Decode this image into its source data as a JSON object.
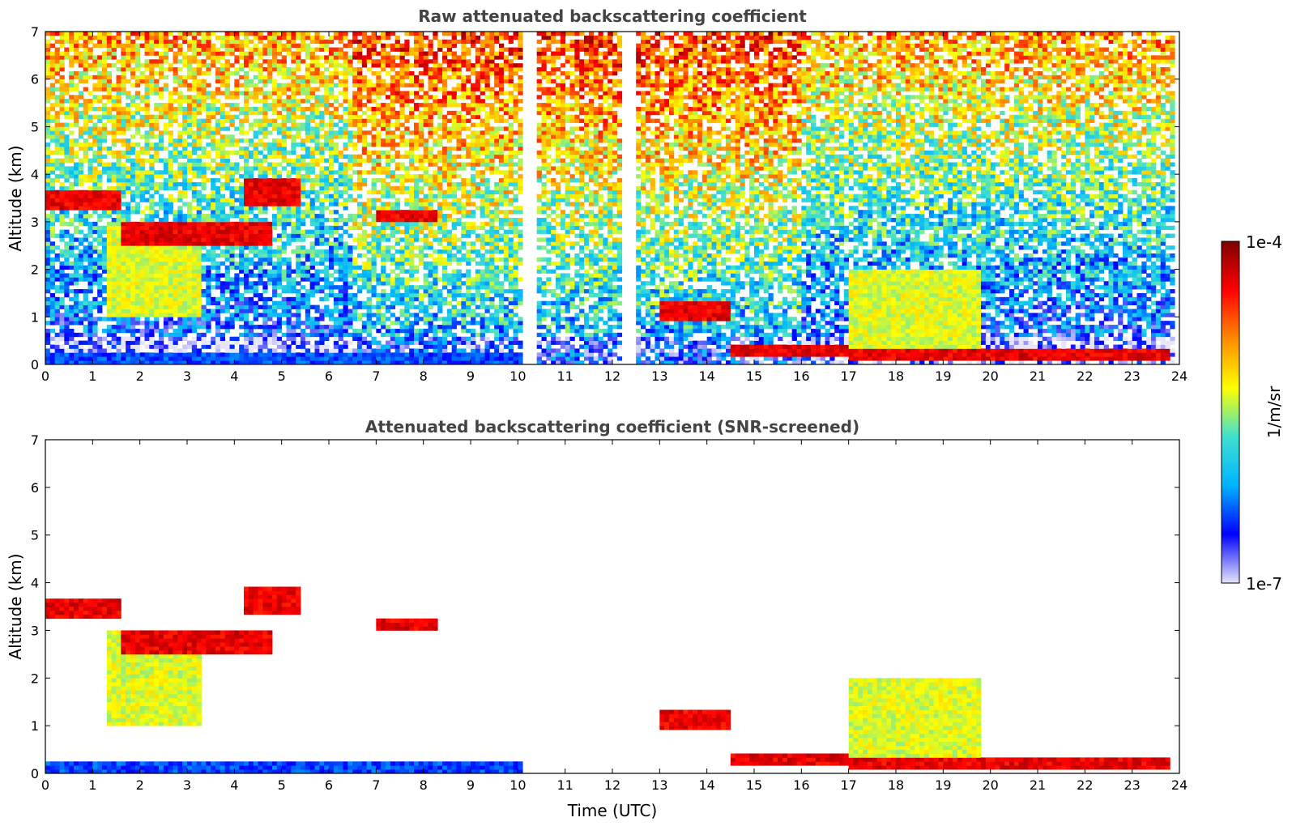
{
  "chart_data": [
    {
      "type": "heatmap",
      "title": "Raw attenuated backscattering coefficient",
      "xlabel": "",
      "ylabel": "Altitude (km)",
      "xlim": [
        0,
        24
      ],
      "ylim": [
        0,
        7
      ],
      "xticks": [
        "0",
        "1",
        "2",
        "3",
        "4",
        "5",
        "6",
        "7",
        "8",
        "9",
        "10",
        "11",
        "12",
        "13",
        "14",
        "15",
        "16",
        "17",
        "18",
        "19",
        "20",
        "21",
        "22",
        "23",
        "24"
      ],
      "yticks": [
        "0",
        "1",
        "2",
        "3",
        "4",
        "5",
        "6",
        "7"
      ],
      "grid": false,
      "data_gaps_utc": [
        [
          10.15,
          10.45
        ],
        [
          12.2,
          12.5
        ]
      ],
      "valid_range_utc": [
        0,
        23.85
      ],
      "features": [
        {
          "kind": "surface_layer",
          "x_range": [
            0,
            10.15
          ],
          "alt_km": [
            0,
            0.25
          ],
          "level": "low"
        },
        {
          "kind": "cloud",
          "x_range": [
            0,
            1.6
          ],
          "alt_km": [
            3.25,
            3.65
          ],
          "level": "high"
        },
        {
          "kind": "cloud",
          "x_range": [
            1.6,
            4.8
          ],
          "alt_km": [
            2.5,
            3.0
          ],
          "level": "high"
        },
        {
          "kind": "virga",
          "x_range": [
            1.3,
            3.3
          ],
          "alt_km": [
            1.0,
            3.0
          ],
          "level": "mid"
        },
        {
          "kind": "cloud",
          "x_range": [
            4.2,
            5.4
          ],
          "alt_km": [
            3.3,
            3.9
          ],
          "level": "high"
        },
        {
          "kind": "cloud",
          "x_range": [
            7.0,
            8.3
          ],
          "alt_km": [
            3.0,
            3.25
          ],
          "level": "high"
        },
        {
          "kind": "boundary_layer_top",
          "x_range": [
            14.5,
            17.0
          ],
          "alt_km": [
            0.15,
            0.45
          ],
          "level": "high"
        },
        {
          "kind": "boundary_layer_top",
          "x_range": [
            17.0,
            23.8
          ],
          "alt_km": [
            0.1,
            0.3
          ],
          "level": "high"
        },
        {
          "kind": "convective_cloud",
          "x_range": [
            17.0,
            19.8
          ],
          "alt_km": [
            0.2,
            2.0
          ],
          "level": "mid"
        },
        {
          "kind": "cloud",
          "x_range": [
            13.0,
            14.5
          ],
          "alt_km": [
            0.9,
            1.3
          ],
          "level": "high"
        }
      ]
    },
    {
      "type": "heatmap",
      "title": "Attenuated backscattering coefficient (SNR-screened)",
      "xlabel": "Time (UTC)",
      "ylabel": "Altitude (km)",
      "xlim": [
        0,
        24
      ],
      "ylim": [
        0,
        7
      ],
      "xticks": [
        "0",
        "1",
        "2",
        "3",
        "4",
        "5",
        "6",
        "7",
        "8",
        "9",
        "10",
        "11",
        "12",
        "13",
        "14",
        "15",
        "16",
        "17",
        "18",
        "19",
        "20",
        "21",
        "22",
        "23",
        "24"
      ],
      "yticks": [
        "0",
        "1",
        "2",
        "3",
        "4",
        "5",
        "6",
        "7"
      ],
      "grid": false,
      "data_gaps_utc": [
        [
          10.15,
          10.45
        ],
        [
          12.2,
          12.5
        ]
      ],
      "valid_range_utc": [
        0,
        23.85
      ]
    }
  ],
  "colorbar": {
    "label": "1/m/sr",
    "min_label": "1e-7",
    "max_label": "1e-4",
    "scale": "log",
    "colormap": "jet",
    "colors": [
      "#e6e6fa",
      "#0000ff",
      "#00b4ff",
      "#40e0d0",
      "#ffff00",
      "#ff8c00",
      "#ff0000",
      "#800000"
    ]
  }
}
